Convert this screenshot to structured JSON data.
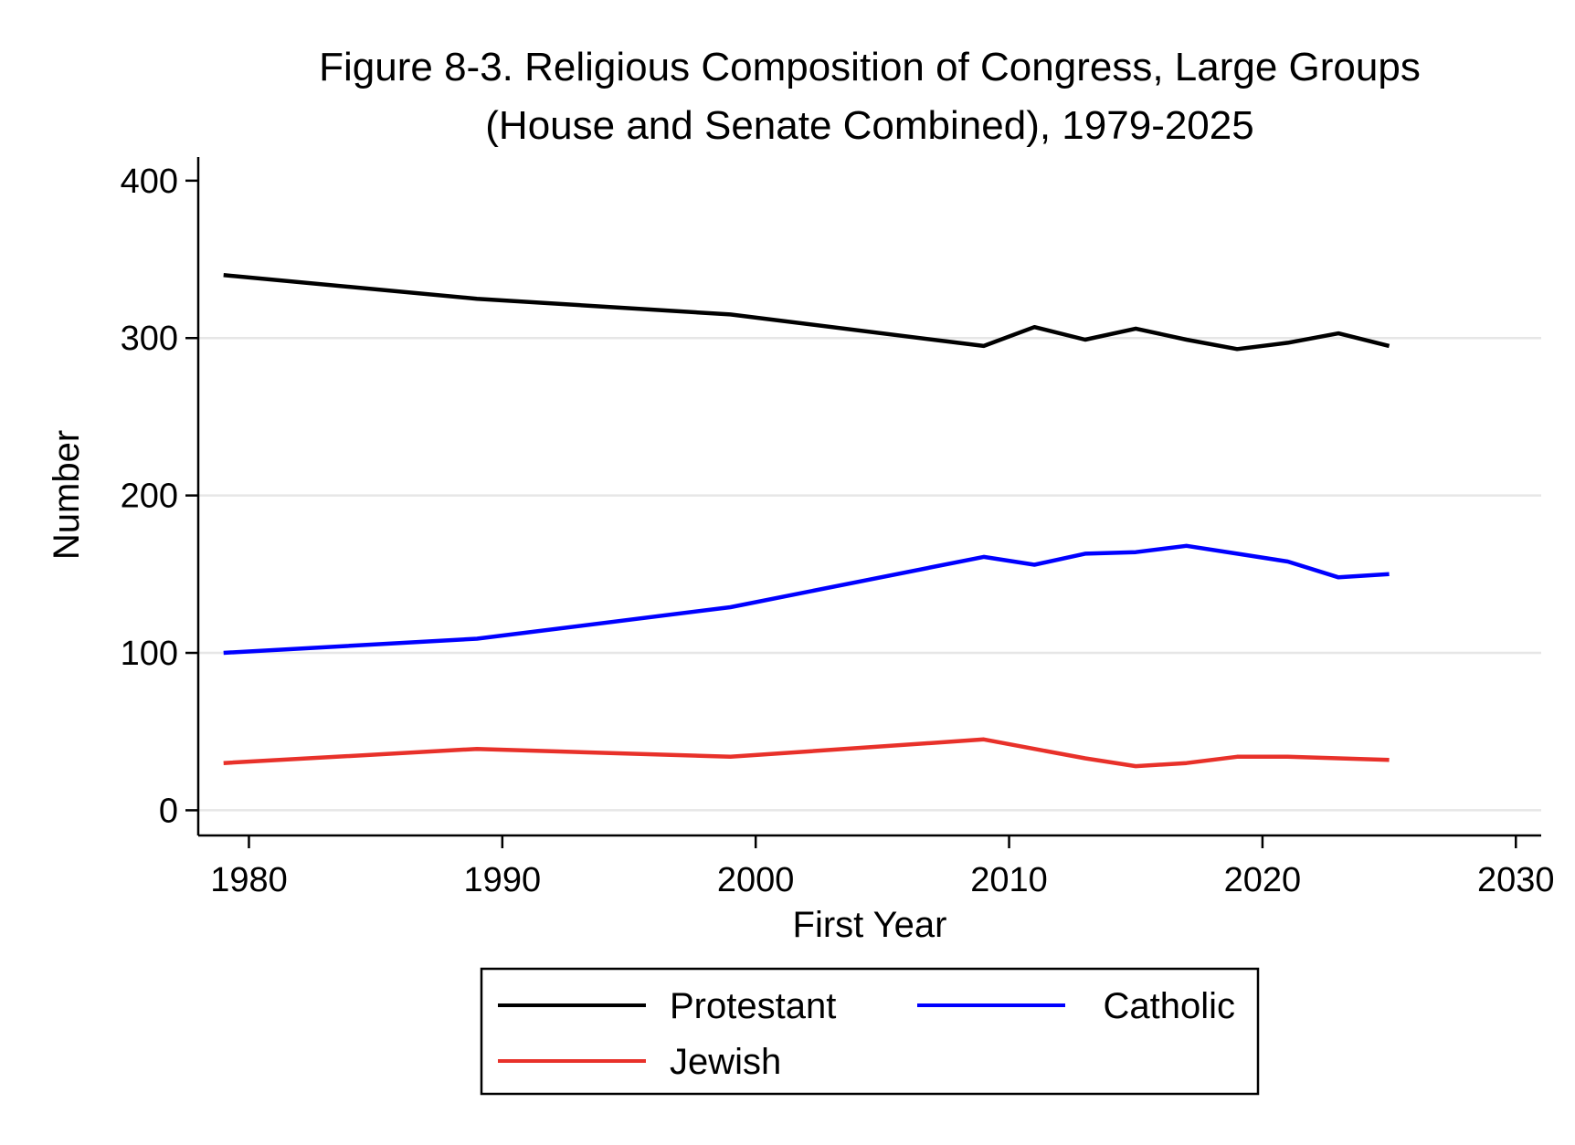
{
  "chart_data": {
    "type": "line",
    "title_line1": "Figure 8-3. Religious Composition of Congress, Large Groups",
    "title_line2": "(House and Senate Combined), 1979-2025",
    "xlabel": "First Year",
    "ylabel": "Number",
    "xlim": [
      1978,
      2031
    ],
    "ylim": [
      -16,
      415
    ],
    "x_ticks": [
      1980,
      1990,
      2000,
      2010,
      2020,
      2030
    ],
    "y_ticks": [
      0,
      100,
      200,
      300,
      400
    ],
    "grid": "horizontal",
    "legend_placement": "bottom",
    "series": [
      {
        "name": "Protestant",
        "color": "#000000",
        "x": [
          1979,
          1989,
          1999,
          2009,
          2011,
          2013,
          2015,
          2017,
          2019,
          2021,
          2023,
          2025
        ],
        "values": [
          340,
          325,
          315,
          295,
          307,
          299,
          306,
          299,
          293,
          297,
          303,
          295
        ]
      },
      {
        "name": "Catholic",
        "color": "#0000ff",
        "x": [
          1979,
          1989,
          1999,
          2009,
          2011,
          2013,
          2015,
          2017,
          2019,
          2021,
          2023,
          2025
        ],
        "values": [
          100,
          109,
          129,
          161,
          156,
          163,
          164,
          168,
          163,
          158,
          148,
          150
        ]
      },
      {
        "name": "Jewish",
        "color": "#e8312a",
        "x": [
          1979,
          1989,
          1999,
          2009,
          2011,
          2013,
          2015,
          2017,
          2019,
          2021,
          2023,
          2025
        ],
        "values": [
          30,
          39,
          34,
          45,
          39,
          33,
          28,
          30,
          34,
          34,
          33,
          32
        ]
      }
    ]
  }
}
